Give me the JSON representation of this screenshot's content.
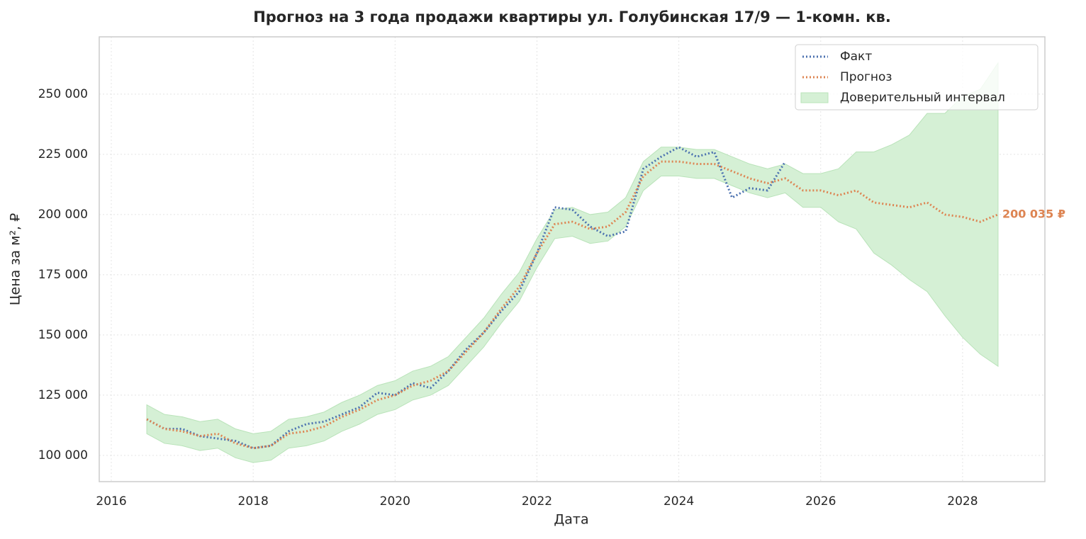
{
  "chart_data": {
    "type": "line",
    "title": "Прогноз на 3 года продажи квартиры  ул. Голубинская 17/9 — 1-комн. кв.",
    "x_label": "Дата",
    "y_label": "Цена за м², ₽",
    "x": [
      2016.5,
      2016.75,
      2017,
      2017.25,
      2017.5,
      2017.75,
      2018,
      2018.25,
      2018.5,
      2018.75,
      2019,
      2019.25,
      2019.5,
      2019.75,
      2020,
      2020.25,
      2020.5,
      2020.75,
      2021,
      2021.25,
      2021.5,
      2021.75,
      2022,
      2022.25,
      2022.5,
      2022.75,
      2023,
      2023.25,
      2023.5,
      2023.75,
      2024,
      2024.25,
      2024.5,
      2024.75,
      2025,
      2025.25,
      2025.5,
      2025.75,
      2026,
      2026.25,
      2026.5,
      2026.75,
      2027,
      2027.25,
      2027.5,
      2027.75,
      2028,
      2028.25,
      2028.5
    ],
    "series": [
      {
        "name": "Факт",
        "color": "#4c72b0",
        "values": [
          115000,
          111000,
          111000,
          108000,
          107000,
          106000,
          103000,
          104000,
          110000,
          113000,
          114000,
          117000,
          120000,
          126000,
          125000,
          130000,
          128000,
          135000,
          144000,
          151000,
          160000,
          168000,
          184000,
          203000,
          202000,
          195000,
          191000,
          193000,
          219000,
          224000,
          228000,
          224000,
          226000,
          207000,
          211000,
          210000,
          222000,
          null,
          null,
          null,
          null,
          null,
          null,
          null,
          null,
          null,
          null,
          null,
          null
        ]
      },
      {
        "name": "Прогноз",
        "color": "#dd8452",
        "values": [
          115000,
          111000,
          110000,
          108000,
          109000,
          105000,
          103000,
          104000,
          109000,
          110000,
          112000,
          116000,
          119000,
          123000,
          125000,
          129000,
          131000,
          135000,
          143000,
          151000,
          161000,
          170000,
          184000,
          196000,
          197000,
          194000,
          195000,
          201000,
          216000,
          222000,
          222000,
          221000,
          221000,
          218000,
          215000,
          213000,
          215000,
          210000,
          210000,
          208000,
          210000,
          205000,
          204000,
          203000,
          205000,
          200000,
          199000,
          197000,
          200035
        ],
        "value_labels": [
          null,
          null,
          null,
          null,
          null,
          null,
          null,
          null,
          null,
          null,
          null,
          null,
          null,
          null,
          null,
          null,
          null,
          null,
          null,
          null,
          null,
          null,
          null,
          null,
          null,
          null,
          null,
          null,
          null,
          null,
          null,
          null,
          null,
          null,
          null,
          null,
          null,
          null,
          null,
          null,
          null,
          null,
          null,
          null,
          null,
          null,
          null,
          null,
          "200 035 ₽"
        ]
      }
    ],
    "band": {
      "name": "Доверительный интервал",
      "color": "#d5f0d5",
      "upper": [
        121000,
        117000,
        116000,
        114000,
        115000,
        111000,
        109000,
        110000,
        115000,
        116000,
        118000,
        122000,
        125000,
        129000,
        131000,
        135000,
        137000,
        141000,
        149000,
        157000,
        167000,
        176000,
        190000,
        202000,
        203000,
        200000,
        201000,
        207000,
        222000,
        228000,
        228000,
        227000,
        227000,
        224000,
        221000,
        219000,
        221000,
        217000,
        217000,
        219000,
        226000,
        226000,
        229000,
        233000,
        242000,
        242000,
        249000,
        252000,
        263000
      ],
      "lower": [
        109000,
        105000,
        104000,
        102000,
        103000,
        99000,
        97000,
        98000,
        103000,
        104000,
        106000,
        110000,
        113000,
        117000,
        119000,
        123000,
        125000,
        129000,
        137000,
        145000,
        155000,
        164000,
        178000,
        190000,
        191000,
        188000,
        189000,
        195000,
        210000,
        216000,
        216000,
        215000,
        215000,
        212000,
        209000,
        207000,
        209000,
        203000,
        203000,
        197000,
        194000,
        184000,
        179000,
        173000,
        168000,
        158000,
        149000,
        142000,
        137000
      ]
    },
    "xlim": [
      2015.83,
      2029.16
    ],
    "ylim": [
      89100,
      273800
    ],
    "xticks": [
      2016,
      2018,
      2020,
      2022,
      2024,
      2026,
      2028
    ],
    "yticks": [
      {
        "value": 100000,
        "label": "100 000"
      },
      {
        "value": 125000,
        "label": "125 000"
      },
      {
        "value": 150000,
        "label": "150 000"
      },
      {
        "value": 175000,
        "label": "175 000"
      },
      {
        "value": 200000,
        "label": "200 000"
      },
      {
        "value": 225000,
        "label": "225 000"
      },
      {
        "value": 250000,
        "label": "250 000"
      }
    ],
    "grid": true,
    "legend": "upper right"
  }
}
